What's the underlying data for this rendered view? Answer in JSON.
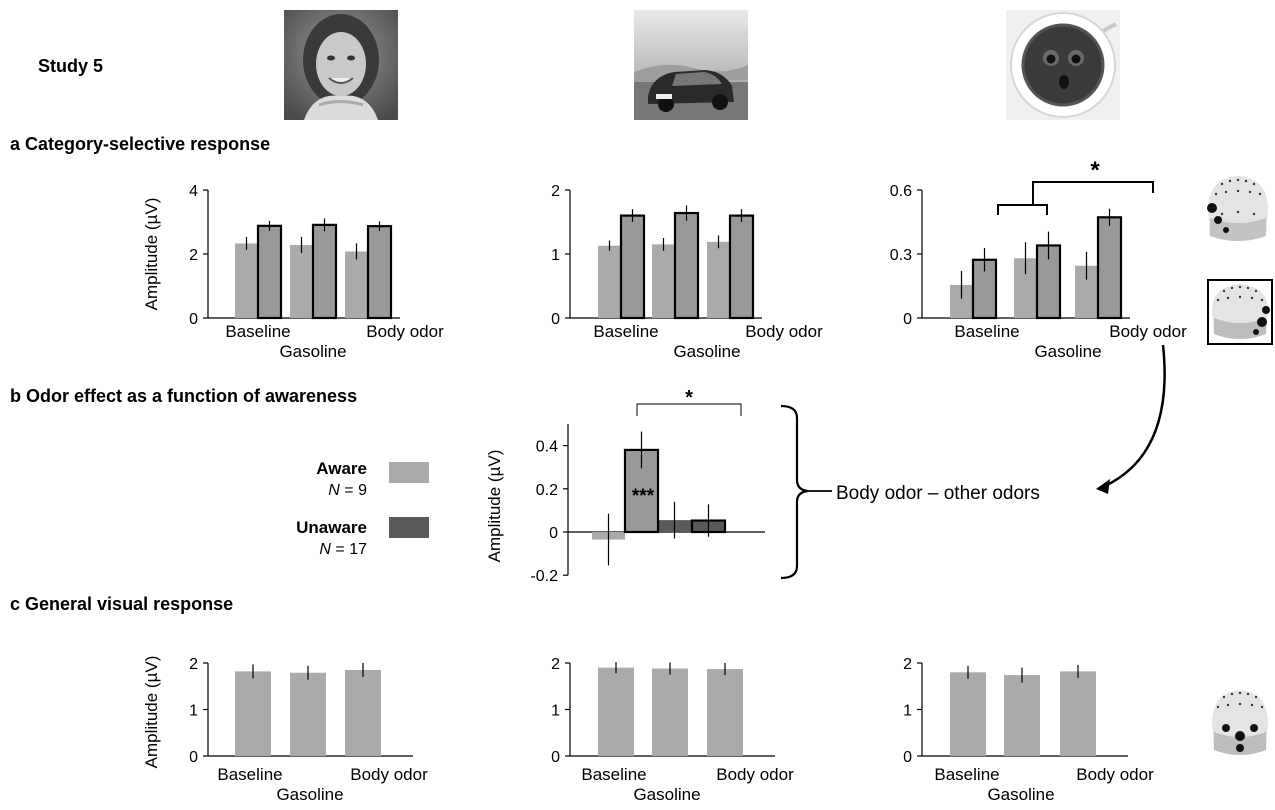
{
  "figure": {
    "study_label": "Study 5",
    "section_a": "a  Category-selective response",
    "section_b": "b  Odor effect as a function of awareness",
    "section_c": "c  General visual response",
    "annotation_b": "Body odor – other odors"
  },
  "legend": {
    "aware_label": "Aware",
    "aware_n": "N = 9",
    "aware_color": "#aaaaaa",
    "unaware_label": "Unaware",
    "unaware_n": "N = 17",
    "unaware_color": "#595959"
  },
  "images": {
    "col1": "face-photo",
    "col2": "car-photo",
    "col3": "coffee-face-photo"
  },
  "colors": {
    "light_gray": "#aaaaaa",
    "mid_gray": "#999999",
    "dark_gray": "#595959"
  },
  "chart_data": [
    {
      "id": "a1",
      "type": "bar",
      "panel": "a",
      "categories": [
        "Baseline",
        "Gasoline",
        "Body odor"
      ],
      "ylabel": "Amplitude (µV)",
      "ylim": [
        0,
        4
      ],
      "yticks": [
        "0",
        "2",
        "4"
      ],
      "series": [
        {
          "values": [
            2.33,
            2.28,
            2.08
          ],
          "errors": [
            0.2,
            0.25,
            0.25
          ],
          "style": "light"
        },
        {
          "values": [
            2.88,
            2.91,
            2.87
          ],
          "errors": [
            0.15,
            0.2,
            0.15
          ],
          "style": "outlined"
        }
      ]
    },
    {
      "id": "a2",
      "type": "bar",
      "panel": "a",
      "categories": [
        "Baseline",
        "Gasoline",
        "Body odor"
      ],
      "ylabel": "",
      "ylim": [
        0,
        2
      ],
      "yticks": [
        "0",
        "1",
        "2"
      ],
      "series": [
        {
          "values": [
            1.13,
            1.15,
            1.19
          ],
          "errors": [
            0.08,
            0.1,
            0.1
          ],
          "style": "light"
        },
        {
          "values": [
            1.6,
            1.64,
            1.6
          ],
          "errors": [
            0.1,
            0.12,
            0.1
          ],
          "style": "outlined"
        }
      ]
    },
    {
      "id": "a3",
      "type": "bar",
      "panel": "a",
      "categories": [
        "Baseline",
        "Gasoline",
        "Body odor"
      ],
      "ylabel": "",
      "ylim": [
        0,
        0.6
      ],
      "yticks": [
        "0",
        "0.3",
        "0.6"
      ],
      "series": [
        {
          "values": [
            0.155,
            0.28,
            0.245
          ],
          "errors": [
            0.065,
            0.075,
            0.065
          ],
          "style": "light"
        },
        {
          "values": [
            0.273,
            0.34,
            0.472
          ],
          "errors": [
            0.055,
            0.065,
            0.04
          ],
          "style": "outlined"
        }
      ],
      "significance": "*"
    },
    {
      "id": "b",
      "type": "bar",
      "panel": "b",
      "categories": [
        "Aware",
        "Unaware"
      ],
      "ylabel": "Amplitude (µV)",
      "ylim": [
        -0.2,
        0.5
      ],
      "yticks": [
        "0.4",
        "0.2",
        "0",
        "-0.2"
      ],
      "series": [
        {
          "values": [
            -0.035,
            0.055
          ],
          "errors": [
            0.12,
            0.085
          ],
          "style": "fill"
        },
        {
          "values": [
            0.38,
            0.053
          ],
          "errors": [
            0.085,
            0.075
          ],
          "style": "outlined"
        }
      ],
      "inner_label": "***",
      "significance": "*"
    },
    {
      "id": "c1",
      "type": "bar",
      "panel": "c",
      "categories": [
        "Baseline",
        "Gasoline",
        "Body odor"
      ],
      "ylabel": "Amplitude (µV)",
      "ylim": [
        0,
        2
      ],
      "yticks": [
        "0",
        "1",
        "2"
      ],
      "series": [
        {
          "values": [
            1.82,
            1.79,
            1.85
          ],
          "errors": [
            0.15,
            0.15,
            0.15
          ],
          "style": "light"
        }
      ]
    },
    {
      "id": "c2",
      "type": "bar",
      "panel": "c",
      "categories": [
        "Baseline",
        "Gasoline",
        "Body odor"
      ],
      "ylabel": "",
      "ylim": [
        0,
        2
      ],
      "yticks": [
        "0",
        "1",
        "2"
      ],
      "series": [
        {
          "values": [
            1.9,
            1.88,
            1.87
          ],
          "errors": [
            0.12,
            0.13,
            0.13
          ],
          "style": "light"
        }
      ]
    },
    {
      "id": "c3",
      "type": "bar",
      "panel": "c",
      "categories": [
        "Baseline",
        "Gasoline",
        "Body odor"
      ],
      "ylabel": "",
      "ylim": [
        0,
        2
      ],
      "yticks": [
        "0",
        "1",
        "2"
      ],
      "series": [
        {
          "values": [
            1.8,
            1.74,
            1.82
          ],
          "errors": [
            0.14,
            0.16,
            0.14
          ],
          "style": "light"
        }
      ]
    }
  ]
}
